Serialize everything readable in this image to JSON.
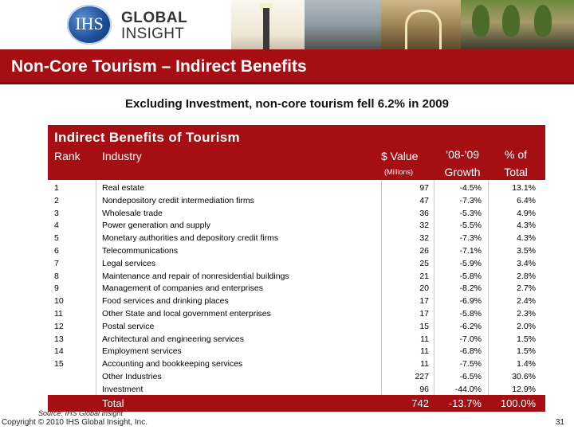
{
  "header": {
    "logo_text": "IHS",
    "brand_line1": "GLOBAL",
    "brand_line2": "INSIGHT"
  },
  "slide": {
    "title": "Non-Core Tourism – Indirect Benefits",
    "subtitle": "Excluding Investment, non-core tourism fell 6.2% in 2009"
  },
  "table": {
    "title": "Indirect Benefits of Tourism",
    "headers": {
      "rank": "Rank",
      "industry": "Industry",
      "value": "$ Value",
      "value_unit": "(Millions)",
      "growth_line1": "’08-’09",
      "growth_line2": "Growth",
      "pct_line1": "% of",
      "pct_line2": "Total"
    },
    "rows": [
      {
        "rank": "1",
        "industry": "Real estate",
        "value": "97",
        "growth": "-4.5%",
        "pct": "13.1%"
      },
      {
        "rank": "2",
        "industry": "Nondepository credit intermediation firms",
        "value": "47",
        "growth": "-7.3%",
        "pct": "6.4%"
      },
      {
        "rank": "3",
        "industry": "Wholesale trade",
        "value": "36",
        "growth": "-5.3%",
        "pct": "4.9%"
      },
      {
        "rank": "4",
        "industry": "Power generation and supply",
        "value": "32",
        "growth": "-5.5%",
        "pct": "4.3%"
      },
      {
        "rank": "5",
        "industry": "Monetary authorities and depository credit firms",
        "value": "32",
        "growth": "-7.3%",
        "pct": "4.3%"
      },
      {
        "rank": "6",
        "industry": "Telecommunications",
        "value": "26",
        "growth": "-7.1%",
        "pct": "3.5%"
      },
      {
        "rank": "7",
        "industry": "Legal services",
        "value": "25",
        "growth": "-5.9%",
        "pct": "3.4%"
      },
      {
        "rank": "8",
        "industry": "Maintenance and repair of nonresidential buildings",
        "value": "21",
        "growth": "-5.8%",
        "pct": "2.8%"
      },
      {
        "rank": "9",
        "industry": "Management of companies and enterprises",
        "value": "20",
        "growth": "-8.2%",
        "pct": "2.7%"
      },
      {
        "rank": "10",
        "industry": "Food services and drinking places",
        "value": "17",
        "growth": "-6.9%",
        "pct": "2.4%"
      },
      {
        "rank": "11",
        "industry": "Other State and local government enterprises",
        "value": "17",
        "growth": "-5.8%",
        "pct": "2.3%"
      },
      {
        "rank": "12",
        "industry": "Postal service",
        "value": "15",
        "growth": "-6.2%",
        "pct": "2.0%"
      },
      {
        "rank": "13",
        "industry": "Architectural and engineering services",
        "value": "11",
        "growth": "-7.0%",
        "pct": "1.5%"
      },
      {
        "rank": "14",
        "industry": "Employment services",
        "value": "11",
        "growth": "-6.8%",
        "pct": "1.5%"
      },
      {
        "rank": "15",
        "industry": "Accounting and bookkeeping services",
        "value": "11",
        "growth": "-7.5%",
        "pct": "1.4%"
      },
      {
        "rank": "",
        "industry": "Other Industries",
        "value": "227",
        "growth": "-6.5%",
        "pct": "30.6%"
      },
      {
        "rank": "",
        "industry": "Investment",
        "value": "96",
        "growth": "-44.0%",
        "pct": "12.9%"
      }
    ],
    "total": {
      "label": "Total",
      "value": "742",
      "growth": "-13.7%",
      "pct": "100.0%"
    }
  },
  "footer": {
    "source": "Source: IHS Global Insight",
    "copyright": "Copyright © 2010 IHS Global Insight, Inc.",
    "page_number": "31"
  }
}
